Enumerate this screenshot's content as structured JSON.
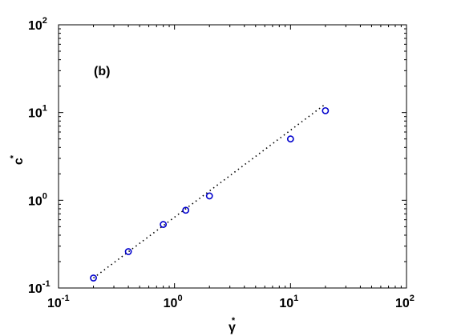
{
  "chart_data": {
    "type": "scatter",
    "xscale": "log",
    "yscale": "log",
    "xlim": [
      0.1,
      100
    ],
    "ylim": [
      0.1,
      100
    ],
    "xlabel": "γ",
    "xlabel_sup": "*",
    "ylabel": "c",
    "ylabel_sup": "*",
    "grid": false,
    "x_ticks": [
      {
        "base": "10",
        "exp": "-1"
      },
      {
        "base": "10",
        "exp": "0"
      },
      {
        "base": "10",
        "exp": "1"
      },
      {
        "base": "10",
        "exp": "2"
      }
    ],
    "y_ticks": [
      {
        "base": "10",
        "exp": "-1"
      },
      {
        "base": "10",
        "exp": "0"
      },
      {
        "base": "10",
        "exp": "1"
      },
      {
        "base": "10",
        "exp": "2"
      }
    ],
    "annotation": "(b)",
    "series": [
      {
        "marker": "circle",
        "color": "#0000cc",
        "x": [
          0.2,
          0.4,
          0.8,
          1.25,
          2.0,
          10.0,
          20.0
        ],
        "y": [
          0.13,
          0.26,
          0.53,
          0.77,
          1.12,
          5.0,
          10.5
        ]
      },
      {
        "style": "dotted",
        "color": "#000000",
        "x": [
          0.2,
          20.0
        ],
        "y": [
          0.13,
          12.5
        ]
      }
    ]
  }
}
